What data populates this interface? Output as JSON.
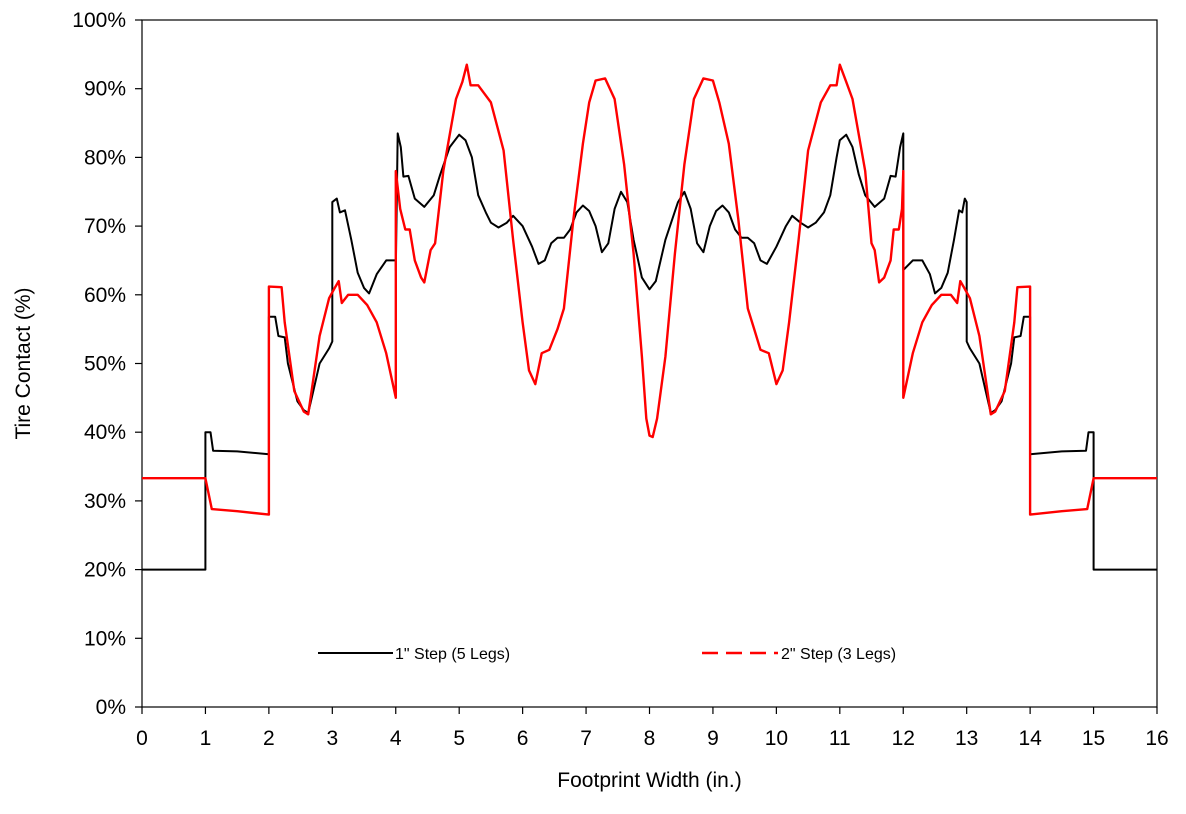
{
  "chart_data": {
    "type": "line",
    "xlabel": "Footprint Width (in.)",
    "ylabel": "Tire Contact (%)",
    "xlim": [
      0,
      16
    ],
    "ylim": [
      0,
      100
    ],
    "x_ticks": [
      "0",
      "1",
      "2",
      "3",
      "4",
      "5",
      "6",
      "7",
      "8",
      "9",
      "10",
      "11",
      "12",
      "13",
      "14",
      "15",
      "16"
    ],
    "y_ticks": [
      "0%",
      "10%",
      "20%",
      "30%",
      "40%",
      "50%",
      "60%",
      "70%",
      "80%",
      "90%",
      "100%"
    ],
    "grid": false,
    "legend_position": "bottom-center, inside plot",
    "series": [
      {
        "name": "1\" Step (5 Legs)",
        "color": "#000000",
        "style": "solid",
        "points": [
          [
            0,
            20
          ],
          [
            1,
            20
          ],
          [
            1,
            40
          ],
          [
            1.08,
            40
          ],
          [
            1.12,
            37.3
          ],
          [
            1.5,
            37.2
          ],
          [
            2,
            36.8
          ],
          [
            2,
            56.8
          ],
          [
            2.1,
            56.8
          ],
          [
            2.15,
            54
          ],
          [
            2.25,
            53.8
          ],
          [
            2.3,
            50
          ],
          [
            2.45,
            44.5
          ],
          [
            2.55,
            43.2
          ],
          [
            2.62,
            42.8
          ],
          [
            2.7,
            46
          ],
          [
            2.8,
            50
          ],
          [
            2.95,
            52.2
          ],
          [
            3,
            53.2
          ],
          [
            3,
            73.5
          ],
          [
            3.07,
            74
          ],
          [
            3.12,
            72
          ],
          [
            3.2,
            72.3
          ],
          [
            3.3,
            68
          ],
          [
            3.4,
            63.2
          ],
          [
            3.5,
            61
          ],
          [
            3.58,
            60.2
          ],
          [
            3.7,
            63
          ],
          [
            3.85,
            65
          ],
          [
            4,
            65
          ],
          [
            4,
            63.6
          ],
          [
            4.03,
            83.5
          ],
          [
            4.08,
            81.5
          ],
          [
            4.12,
            77.2
          ],
          [
            4.2,
            77.3
          ],
          [
            4.3,
            74
          ],
          [
            4.45,
            72.8
          ],
          [
            4.6,
            74.5
          ],
          [
            4.7,
            77.5
          ],
          [
            4.85,
            81.5
          ],
          [
            5.0,
            83.3
          ],
          [
            5.1,
            82.5
          ],
          [
            5.2,
            80
          ],
          [
            5.3,
            74.5
          ],
          [
            5.42,
            72
          ],
          [
            5.5,
            70.5
          ],
          [
            5.62,
            69.8
          ],
          [
            5.75,
            70.5
          ],
          [
            5.85,
            71.5
          ],
          [
            6.0,
            70
          ],
          [
            6.15,
            67
          ],
          [
            6.25,
            64.5
          ],
          [
            6.35,
            65
          ],
          [
            6.45,
            67.5
          ],
          [
            6.55,
            68.3
          ],
          [
            6.65,
            68.3
          ],
          [
            6.75,
            69.5
          ],
          [
            6.85,
            72
          ],
          [
            6.95,
            73
          ],
          [
            7.05,
            72.2
          ],
          [
            7.15,
            70
          ],
          [
            7.25,
            66.2
          ],
          [
            7.35,
            67.5
          ],
          [
            7.45,
            72.5
          ],
          [
            7.55,
            75
          ],
          [
            7.65,
            73.5
          ],
          [
            7.75,
            68
          ],
          [
            7.88,
            62.5
          ],
          [
            8.0,
            60.8
          ],
          [
            8.1,
            62
          ],
          [
            8.25,
            68
          ],
          [
            8.45,
            73.5
          ],
          [
            8.55,
            75
          ],
          [
            8.65,
            72.5
          ],
          [
            8.75,
            67.5
          ],
          [
            8.85,
            66.2
          ],
          [
            8.95,
            70
          ],
          [
            9.05,
            72.2
          ],
          [
            9.15,
            73
          ],
          [
            9.25,
            72
          ],
          [
            9.35,
            69.5
          ],
          [
            9.45,
            68.3
          ],
          [
            9.55,
            68.3
          ],
          [
            9.65,
            67.5
          ],
          [
            9.75,
            65
          ],
          [
            9.85,
            64.5
          ],
          [
            10.0,
            67
          ],
          [
            10.15,
            70
          ],
          [
            10.25,
            71.5
          ],
          [
            10.38,
            70.5
          ],
          [
            10.5,
            69.8
          ],
          [
            10.62,
            70.5
          ],
          [
            10.75,
            72
          ],
          [
            10.85,
            74.5
          ],
          [
            10.95,
            80
          ],
          [
            11.0,
            82.5
          ],
          [
            11.1,
            83.3
          ],
          [
            11.2,
            81.5
          ],
          [
            11.3,
            77.5
          ],
          [
            11.4,
            74.5
          ],
          [
            11.55,
            72.8
          ],
          [
            11.7,
            74
          ],
          [
            11.8,
            77.3
          ],
          [
            11.88,
            77.2
          ],
          [
            11.95,
            81.5
          ],
          [
            12,
            83.5
          ],
          [
            12,
            63.6
          ],
          [
            12.15,
            65
          ],
          [
            12.3,
            65
          ],
          [
            12.42,
            63
          ],
          [
            12.5,
            60.2
          ],
          [
            12.6,
            61
          ],
          [
            12.7,
            63.2
          ],
          [
            12.8,
            68
          ],
          [
            12.88,
            72.3
          ],
          [
            12.93,
            72
          ],
          [
            12.97,
            74
          ],
          [
            13,
            73.5
          ],
          [
            13,
            53.2
          ],
          [
            13.05,
            52.2
          ],
          [
            13.2,
            50
          ],
          [
            13.3,
            46
          ],
          [
            13.38,
            42.8
          ],
          [
            13.45,
            43.2
          ],
          [
            13.55,
            44.5
          ],
          [
            13.7,
            50
          ],
          [
            13.75,
            53.8
          ],
          [
            13.85,
            54
          ],
          [
            13.9,
            56.8
          ],
          [
            14,
            56.8
          ],
          [
            14,
            36.8
          ],
          [
            14.5,
            37.2
          ],
          [
            14.88,
            37.3
          ],
          [
            14.92,
            40
          ],
          [
            15,
            40
          ],
          [
            15,
            20
          ],
          [
            16,
            20
          ]
        ]
      },
      {
        "name": "2\" Step (3 Legs)",
        "color": "#ff0000",
        "style": "dashed",
        "points": [
          [
            0,
            33.3
          ],
          [
            1,
            33.3
          ],
          [
            1.1,
            28.8
          ],
          [
            1.5,
            28.5
          ],
          [
            2,
            28
          ],
          [
            2,
            61.2
          ],
          [
            2.2,
            61.1
          ],
          [
            2.25,
            56
          ],
          [
            2.4,
            46
          ],
          [
            2.55,
            43
          ],
          [
            2.62,
            42.6
          ],
          [
            2.8,
            54
          ],
          [
            2.95,
            59.5
          ],
          [
            3.05,
            61.2
          ],
          [
            3.1,
            62
          ],
          [
            3.15,
            58.8
          ],
          [
            3.25,
            60
          ],
          [
            3.4,
            60
          ],
          [
            3.55,
            58.5
          ],
          [
            3.7,
            56
          ],
          [
            3.85,
            51.5
          ],
          [
            4,
            45
          ],
          [
            4,
            78
          ],
          [
            4.07,
            72.5
          ],
          [
            4.15,
            69.5
          ],
          [
            4.22,
            69.5
          ],
          [
            4.3,
            65
          ],
          [
            4.4,
            62.5
          ],
          [
            4.45,
            61.8
          ],
          [
            4.55,
            66.5
          ],
          [
            4.62,
            67.5
          ],
          [
            4.75,
            78
          ],
          [
            4.95,
            88.5
          ],
          [
            5.05,
            91
          ],
          [
            5.12,
            93.5
          ],
          [
            5.18,
            90.5
          ],
          [
            5.3,
            90.5
          ],
          [
            5.5,
            88
          ],
          [
            5.7,
            81
          ],
          [
            5.85,
            68
          ],
          [
            6.0,
            56
          ],
          [
            6.1,
            49
          ],
          [
            6.2,
            47
          ],
          [
            6.3,
            51.5
          ],
          [
            6.42,
            52
          ],
          [
            6.55,
            55
          ],
          [
            6.65,
            58
          ],
          [
            6.8,
            71
          ],
          [
            6.95,
            82
          ],
          [
            7.05,
            88
          ],
          [
            7.15,
            91.2
          ],
          [
            7.3,
            91.5
          ],
          [
            7.45,
            88.5
          ],
          [
            7.6,
            79
          ],
          [
            7.75,
            66
          ],
          [
            7.88,
            51
          ],
          [
            7.95,
            42
          ],
          [
            8.0,
            39.5
          ],
          [
            8.05,
            39.3
          ],
          [
            8.12,
            42
          ],
          [
            8.25,
            51
          ],
          [
            8.4,
            66
          ],
          [
            8.55,
            79
          ],
          [
            8.7,
            88.5
          ],
          [
            8.85,
            91.5
          ],
          [
            9.0,
            91.2
          ],
          [
            9.1,
            88
          ],
          [
            9.25,
            82
          ],
          [
            9.4,
            71
          ],
          [
            9.55,
            58
          ],
          [
            9.65,
            55
          ],
          [
            9.75,
            52
          ],
          [
            9.88,
            51.5
          ],
          [
            10.0,
            47
          ],
          [
            10.1,
            49
          ],
          [
            10.2,
            56
          ],
          [
            10.35,
            68
          ],
          [
            10.5,
            81
          ],
          [
            10.7,
            88
          ],
          [
            10.85,
            90.5
          ],
          [
            10.95,
            90.5
          ],
          [
            11.0,
            93.5
          ],
          [
            11.1,
            91
          ],
          [
            11.2,
            88.5
          ],
          [
            11.4,
            78
          ],
          [
            11.5,
            67.5
          ],
          [
            11.55,
            66.5
          ],
          [
            11.62,
            61.8
          ],
          [
            11.7,
            62.5
          ],
          [
            11.8,
            65
          ],
          [
            11.85,
            69.5
          ],
          [
            11.93,
            69.5
          ],
          [
            11.98,
            72.5
          ],
          [
            12,
            78
          ],
          [
            12,
            45
          ],
          [
            12.15,
            51.5
          ],
          [
            12.3,
            56
          ],
          [
            12.45,
            58.5
          ],
          [
            12.6,
            60
          ],
          [
            12.75,
            60
          ],
          [
            12.85,
            58.8
          ],
          [
            12.9,
            62
          ],
          [
            12.95,
            61.2
          ],
          [
            13.05,
            59.5
          ],
          [
            13.2,
            54
          ],
          [
            13.38,
            42.6
          ],
          [
            13.45,
            43
          ],
          [
            13.6,
            46
          ],
          [
            13.75,
            56
          ],
          [
            13.8,
            61.1
          ],
          [
            14,
            61.2
          ],
          [
            14,
            28
          ],
          [
            14.5,
            28.5
          ],
          [
            14.9,
            28.8
          ],
          [
            15,
            33.3
          ],
          [
            16,
            33.3
          ]
        ]
      }
    ]
  }
}
